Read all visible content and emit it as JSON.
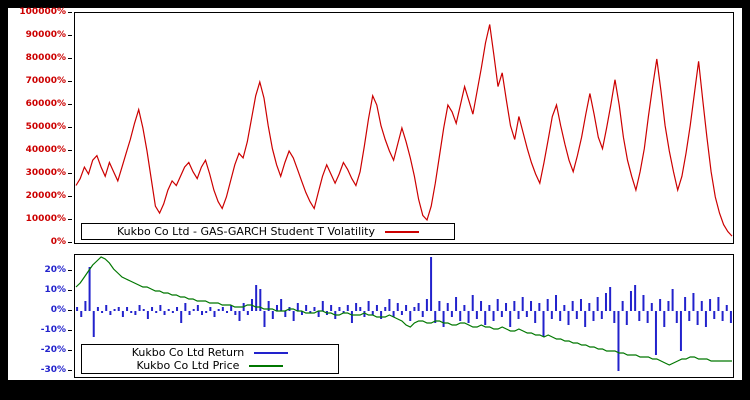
{
  "page": {
    "frame_color": "#000000",
    "panel_color": "#ffffff"
  },
  "chart_data": [
    {
      "type": "line",
      "title": "",
      "xlabel": "",
      "ylabel": "",
      "ylim": [
        0,
        100000
      ],
      "yticks": [
        100000,
        90000,
        80000,
        70000,
        60000,
        50000,
        40000,
        30000,
        20000,
        10000,
        0
      ],
      "tick_suffix": "%",
      "grid": false,
      "legend_position": "bottom-left",
      "legend": [
        {
          "label": "Kukbo Co Ltd - GAS-GARCH Student T Volatility",
          "color": "#cc0000"
        }
      ],
      "series": [
        {
          "name": "volatility",
          "kind": "line",
          "color": "#cc0000",
          "values": [
            25000,
            28000,
            33000,
            30000,
            36000,
            38000,
            33000,
            29000,
            35000,
            31000,
            27000,
            33000,
            39000,
            45000,
            52000,
            58000,
            50000,
            40000,
            28000,
            16000,
            13000,
            17000,
            23000,
            27000,
            25000,
            29000,
            33000,
            35000,
            31000,
            28000,
            33000,
            36000,
            30000,
            23000,
            18000,
            15000,
            20000,
            27000,
            34000,
            39000,
            37000,
            44000,
            54000,
            64000,
            70000,
            63000,
            51000,
            41000,
            34000,
            29000,
            35000,
            40000,
            37000,
            32000,
            27000,
            22000,
            18000,
            15000,
            22000,
            29000,
            34000,
            30000,
            26000,
            30000,
            35000,
            32000,
            28000,
            25000,
            31000,
            42000,
            54000,
            64000,
            60000,
            51000,
            45000,
            40000,
            36000,
            43000,
            50000,
            44000,
            37000,
            29000,
            19000,
            12000,
            10000,
            16000,
            26000,
            38000,
            50000,
            60000,
            57000,
            52000,
            60000,
            68000,
            62000,
            56000,
            66000,
            76000,
            87000,
            95000,
            82000,
            68000,
            74000,
            62000,
            51000,
            45000,
            55000,
            48000,
            41000,
            35000,
            30000,
            26000,
            35000,
            45000,
            55000,
            60000,
            51000,
            43000,
            36000,
            31000,
            38000,
            46000,
            56000,
            65000,
            56000,
            46000,
            41000,
            50000,
            60000,
            71000,
            60000,
            46000,
            36000,
            29000,
            23000,
            31000,
            41000,
            55000,
            68000,
            80000,
            66000,
            51000,
            40000,
            31000,
            23000,
            29000,
            39000,
            51000,
            65000,
            79000,
            62000,
            46000,
            31000,
            20000,
            13000,
            8000,
            5000,
            3000
          ]
        }
      ]
    },
    {
      "type": "bar",
      "title": "",
      "xlabel": "",
      "ylabel": "",
      "ylim": [
        -33,
        28
      ],
      "yticks": [
        20,
        10,
        0,
        -10,
        -20,
        -30
      ],
      "tick_suffix": "%",
      "grid": false,
      "legend_position": "bottom-left",
      "legend": [
        {
          "label": "Kukbo Co Ltd Return",
          "color": "#2222cc"
        },
        {
          "label": "Kukbo Co Ltd Price",
          "color": "#007700"
        }
      ],
      "series": [
        {
          "name": "return",
          "kind": "bar",
          "color": "#2222cc",
          "values": [
            2,
            -3,
            5,
            22,
            -13,
            2,
            -1,
            3,
            -2,
            1,
            2,
            -3,
            2,
            -1,
            -2,
            3,
            1,
            -4,
            2,
            -1,
            3,
            -2,
            1,
            -1,
            2,
            -6,
            4,
            -2,
            1,
            3,
            -2,
            -1,
            2,
            -3,
            1,
            2,
            -1,
            3,
            -2,
            -5,
            4,
            -2,
            6,
            13,
            11,
            -8,
            5,
            -4,
            3,
            6,
            -3,
            2,
            -5,
            4,
            -2,
            3,
            -1,
            2,
            -3,
            5,
            -2,
            3,
            -4,
            2,
            -1,
            3,
            -6,
            4,
            2,
            -3,
            5,
            -2,
            3,
            -4,
            2,
            6,
            -3,
            4,
            -2,
            3,
            -5,
            2,
            4,
            -3,
            6,
            27,
            -6,
            5,
            -8,
            4,
            -3,
            7,
            -5,
            3,
            -6,
            8,
            -4,
            5,
            -7,
            3,
            -5,
            6,
            -3,
            4,
            -8,
            5,
            -4,
            7,
            -3,
            5,
            -6,
            4,
            -13,
            6,
            -4,
            8,
            -5,
            3,
            -7,
            5,
            -4,
            6,
            -8,
            4,
            -5,
            7,
            -4,
            9,
            12,
            -6,
            -30,
            5,
            -7,
            10,
            13,
            -5,
            8,
            -6,
            4,
            -22,
            6,
            -8,
            5,
            11,
            -6,
            -20,
            7,
            -5,
            9,
            -7,
            5,
            -8,
            6,
            -4,
            7,
            -5,
            3,
            -6
          ]
        },
        {
          "name": "price",
          "kind": "line",
          "color": "#007700",
          "values": [
            12,
            14,
            17,
            20,
            23,
            25,
            27,
            26,
            24,
            21,
            19,
            17,
            16,
            15,
            14,
            13,
            12,
            12,
            11,
            10,
            10,
            9,
            9,
            8,
            8,
            7,
            7,
            6,
            6,
            5,
            5,
            5,
            4,
            4,
            4,
            3,
            3,
            3,
            2,
            2,
            2,
            3,
            3,
            2,
            2,
            1,
            1,
            1,
            0,
            0,
            0,
            1,
            1,
            0,
            0,
            -1,
            -1,
            -1,
            0,
            0,
            -1,
            -1,
            -2,
            -2,
            -1,
            -1,
            -2,
            -2,
            -2,
            -1,
            -2,
            -2,
            -3,
            -3,
            -3,
            -2,
            -3,
            -4,
            -5,
            -7,
            -8,
            -6,
            -5,
            -5,
            -6,
            -6,
            -5,
            -5,
            -6,
            -6,
            -7,
            -7,
            -6,
            -6,
            -7,
            -8,
            -8,
            -7,
            -8,
            -8,
            -9,
            -9,
            -8,
            -9,
            -10,
            -10,
            -9,
            -10,
            -11,
            -11,
            -12,
            -12,
            -13,
            -12,
            -13,
            -14,
            -14,
            -15,
            -15,
            -16,
            -16,
            -17,
            -17,
            -18,
            -18,
            -19,
            -19,
            -20,
            -20,
            -20,
            -21,
            -21,
            -22,
            -22,
            -22,
            -23,
            -23,
            -23,
            -24,
            -24,
            -25,
            -26,
            -27,
            -26,
            -25,
            -24,
            -24,
            -23,
            -23,
            -24,
            -24,
            -24,
            -25,
            -25,
            -25,
            -25,
            -25,
            -25
          ]
        }
      ]
    }
  ]
}
